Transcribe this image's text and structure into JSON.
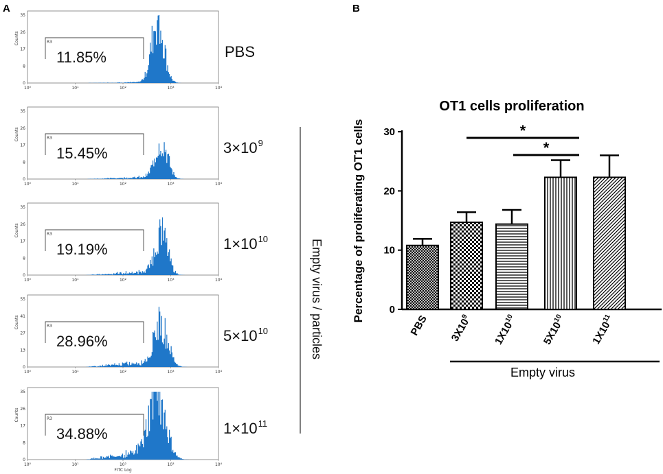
{
  "panel_a": {
    "letter": "A",
    "axis": {
      "x_ticks": [
        "10⁰",
        "10¹",
        "10²",
        "10³",
        "10⁴"
      ],
      "x_label_small": "FITC Log",
      "y_ticks_35": [
        "0",
        "8",
        "17",
        "26",
        "35"
      ],
      "y_ticks_55": [
        "0",
        "13",
        "27",
        "41",
        "55"
      ],
      "y_label": "Counts",
      "gate_label": "R3"
    },
    "plots": [
      {
        "percent": "11.85%",
        "label_base": "PBS",
        "label_exp": "",
        "ymax_label": "35"
      },
      {
        "percent": "15.45%",
        "label_base": "3×10",
        "label_exp": "9",
        "ymax_label": "35"
      },
      {
        "percent": "19.19%",
        "label_base": "1×10",
        "label_exp": "10",
        "ymax_label": "35"
      },
      {
        "percent": "28.96%",
        "label_base": "5×10",
        "label_exp": "10",
        "ymax_label": "55"
      },
      {
        "percent": "34.88%",
        "label_base": "1×10",
        "label_exp": "11",
        "ymax_label": "35"
      }
    ],
    "side_label": "Empty virus / particles",
    "histogram_color": "#1f77c9"
  },
  "panel_b": {
    "letter": "B",
    "group_label": "Empty virus",
    "significance_marker": "*",
    "significance": [
      {
        "from": "3X10^9",
        "to": "5X10^10",
        "label": "*"
      },
      {
        "from": "1X10^10",
        "to": "5X10^10",
        "label": "*"
      }
    ]
  },
  "chart_data": {
    "type": "bar",
    "title": "OT1 cells proliferation",
    "xlabel": "",
    "ylabel": "Percentage of proliferating OT1 cells",
    "ylim": [
      0,
      30
    ],
    "yticks": [
      0,
      10,
      20,
      30
    ],
    "categories": [
      "PBS",
      "3X10^9",
      "1X10^10",
      "5X10^10",
      "1X10^11"
    ],
    "category_labels": [
      {
        "base": "PBS",
        "exp": ""
      },
      {
        "base": "3X10",
        "exp": "9"
      },
      {
        "base": "1X10",
        "exp": "10"
      },
      {
        "base": "5X10",
        "exp": "10"
      },
      {
        "base": "1X10",
        "exp": "11"
      }
    ],
    "values": [
      10.8,
      14.7,
      14.4,
      22.3,
      22.3
    ],
    "errors": [
      1.1,
      1.7,
      2.4,
      2.9,
      3.7
    ],
    "patterns": [
      "crosshatch",
      "checker",
      "horizontal",
      "vertical",
      "diagonal"
    ]
  }
}
